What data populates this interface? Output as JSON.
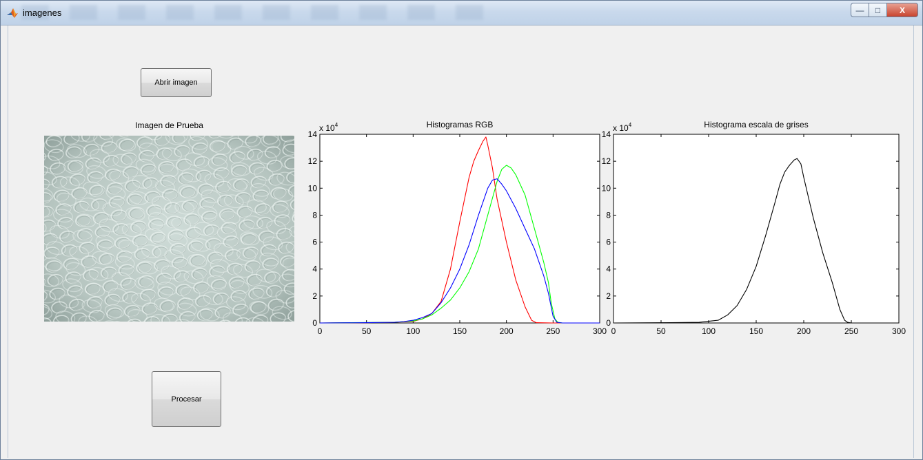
{
  "window": {
    "title": "imagenes",
    "controls": {
      "minimize": "—",
      "maximize": "□",
      "close": "X"
    }
  },
  "buttons": {
    "open_label": "Abrir imagen",
    "process_label": "Procesar"
  },
  "image_panel": {
    "title": "Imagen de Prueba"
  },
  "chart_data": [
    {
      "type": "line",
      "title": "Histogramas RGB",
      "exponent_label": "x 10",
      "exponent": "4",
      "xlim": [
        0,
        300
      ],
      "ylim": [
        0,
        14
      ],
      "xticks": [
        0,
        50,
        100,
        150,
        200,
        250,
        300
      ],
      "yticks": [
        0,
        2,
        4,
        6,
        8,
        10,
        12,
        14
      ],
      "grid": false,
      "series": [
        {
          "color": "#ff0000",
          "points": [
            [
              0,
              0
            ],
            [
              50,
              0.02
            ],
            [
              80,
              0.05
            ],
            [
              100,
              0.12
            ],
            [
              110,
              0.3
            ],
            [
              120,
              0.7
            ],
            [
              130,
              1.6
            ],
            [
              140,
              4.0
            ],
            [
              150,
              7.5
            ],
            [
              160,
              10.8
            ],
            [
              165,
              12.0
            ],
            [
              170,
              12.8
            ],
            [
              175,
              13.5
            ],
            [
              178,
              13.8
            ],
            [
              180,
              13.2
            ],
            [
              185,
              11.5
            ],
            [
              190,
              9.2
            ],
            [
              200,
              6.0
            ],
            [
              210,
              3.2
            ],
            [
              220,
              1.2
            ],
            [
              227,
              0.2
            ],
            [
              232,
              0.02
            ],
            [
              250,
              0
            ],
            [
              300,
              0
            ]
          ]
        },
        {
          "color": "#00ff00",
          "points": [
            [
              0,
              0
            ],
            [
              80,
              0.05
            ],
            [
              100,
              0.15
            ],
            [
              110,
              0.3
            ],
            [
              120,
              0.6
            ],
            [
              130,
              1.1
            ],
            [
              140,
              1.7
            ],
            [
              150,
              2.6
            ],
            [
              160,
              3.8
            ],
            [
              170,
              5.5
            ],
            [
              180,
              8.0
            ],
            [
              190,
              10.5
            ],
            [
              195,
              11.4
            ],
            [
              200,
              11.7
            ],
            [
              205,
              11.5
            ],
            [
              210,
              11.0
            ],
            [
              220,
              9.5
            ],
            [
              230,
              7.0
            ],
            [
              240,
              4.5
            ],
            [
              245,
              3.0
            ],
            [
              248,
              1.5
            ],
            [
              252,
              0.3
            ],
            [
              255,
              0.05
            ],
            [
              260,
              0
            ],
            [
              300,
              0
            ]
          ]
        },
        {
          "color": "#0000ff",
          "points": [
            [
              0,
              0
            ],
            [
              50,
              0.02
            ],
            [
              80,
              0.05
            ],
            [
              90,
              0.1
            ],
            [
              100,
              0.2
            ],
            [
              110,
              0.4
            ],
            [
              120,
              0.7
            ],
            [
              130,
              1.5
            ],
            [
              140,
              2.6
            ],
            [
              150,
              4.0
            ],
            [
              160,
              5.8
            ],
            [
              170,
              8.0
            ],
            [
              180,
              10.0
            ],
            [
              185,
              10.6
            ],
            [
              190,
              10.7
            ],
            [
              195,
              10.3
            ],
            [
              200,
              9.8
            ],
            [
              210,
              8.5
            ],
            [
              220,
              7.0
            ],
            [
              230,
              5.5
            ],
            [
              240,
              3.5
            ],
            [
              245,
              2.2
            ],
            [
              250,
              0.5
            ],
            [
              254,
              0.05
            ],
            [
              260,
              0
            ],
            [
              300,
              0
            ]
          ]
        }
      ]
    },
    {
      "type": "line",
      "title": "Histograma escala de grises",
      "exponent_label": "x 10",
      "exponent": "4",
      "xlim": [
        0,
        300
      ],
      "ylim": [
        0,
        14
      ],
      "xticks": [
        0,
        50,
        100,
        150,
        200,
        250,
        300
      ],
      "yticks": [
        0,
        2,
        4,
        6,
        8,
        10,
        12,
        14
      ],
      "grid": false,
      "series": [
        {
          "color": "#000000",
          "points": [
            [
              0,
              0
            ],
            [
              60,
              0.02
            ],
            [
              90,
              0.05
            ],
            [
              110,
              0.2
            ],
            [
              120,
              0.6
            ],
            [
              130,
              1.3
            ],
            [
              140,
              2.5
            ],
            [
              150,
              4.2
            ],
            [
              160,
              6.5
            ],
            [
              170,
              9.0
            ],
            [
              175,
              10.3
            ],
            [
              180,
              11.2
            ],
            [
              185,
              11.7
            ],
            [
              190,
              12.1
            ],
            [
              193,
              12.2
            ],
            [
              197,
              11.8
            ],
            [
              200,
              10.8
            ],
            [
              205,
              9.3
            ],
            [
              210,
              7.8
            ],
            [
              220,
              5.2
            ],
            [
              230,
              3.0
            ],
            [
              238,
              1.0
            ],
            [
              243,
              0.2
            ],
            [
              246,
              0.05
            ],
            [
              250,
              0
            ],
            [
              300,
              0
            ]
          ]
        }
      ]
    }
  ]
}
